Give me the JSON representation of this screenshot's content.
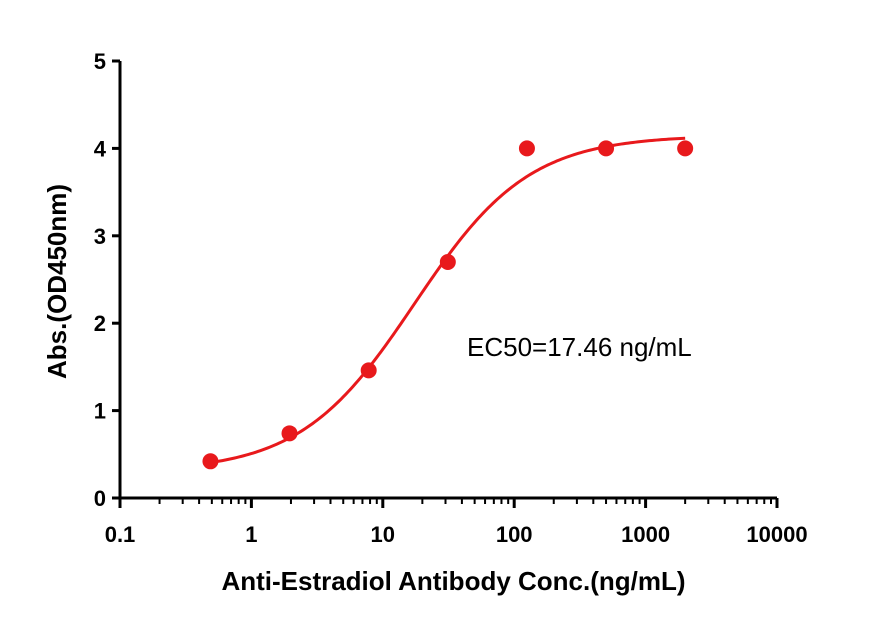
{
  "chart_data": {
    "type": "scatter",
    "xscale": "log",
    "xlabel": "Anti-Estradiol Antibody Conc.(ng/mL)",
    "ylabel": "Abs.(OD450nm)",
    "xlim": [
      0.1,
      10000
    ],
    "ylim": [
      0,
      5
    ],
    "xticks": [
      "0.1",
      "1",
      "10",
      "100",
      "1000",
      "10000"
    ],
    "yticks": [
      "0",
      "1",
      "2",
      "3",
      "4",
      "5"
    ],
    "grid": false,
    "series": [
      {
        "x": [
          0.488,
          1.95,
          7.81,
          31.25,
          125,
          500,
          2000
        ],
        "y": [
          0.42,
          0.74,
          1.46,
          2.7,
          4.0,
          4.0,
          4.0
        ],
        "color": "#e8191c"
      }
    ],
    "fit_curve": {
      "model": "4PL",
      "bottom": 0.3,
      "top": 4.15,
      "ec50": 17.46,
      "hill": 1.0,
      "x_range": [
        0.488,
        2000
      ],
      "color": "#e8191c"
    },
    "annotation": "EC50=17.46 ng/mL"
  }
}
